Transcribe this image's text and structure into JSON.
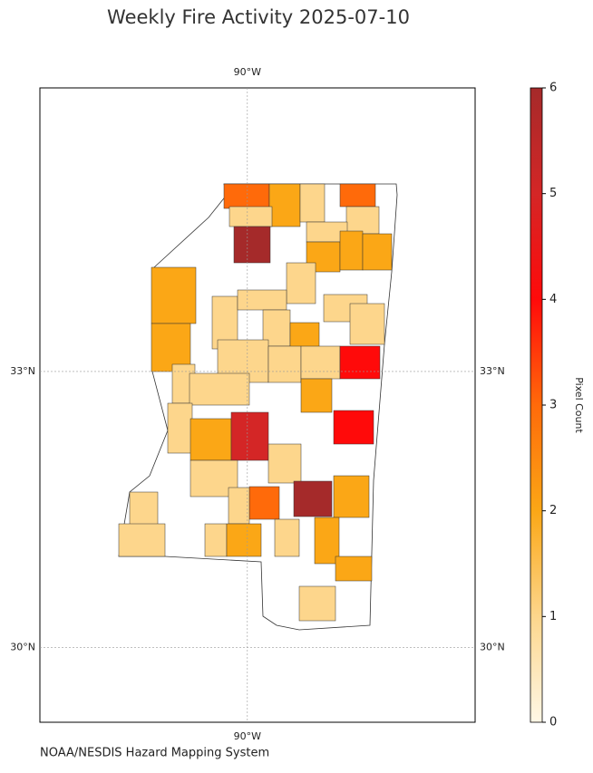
{
  "chart_data": {
    "type": "choropleth",
    "title": "Weekly Fire Activity 2025-07-10",
    "source": "NOAA/NESDIS Hazard Mapping System",
    "xlim": [
      -92.25,
      -87.53
    ],
    "ylim": [
      29.19,
      36.08
    ],
    "xticks": [
      {
        "value": -90,
        "label": "90°W"
      }
    ],
    "yticks": [
      {
        "value": 30,
        "label": "30°N"
      },
      {
        "value": 33,
        "label": "33°N"
      }
    ],
    "grid": true,
    "values": [
      3,
      2,
      1,
      3,
      1,
      1,
      6,
      1,
      2,
      2,
      2,
      2,
      1,
      1,
      1,
      1,
      1,
      1,
      2,
      2,
      1,
      1,
      1,
      4,
      1,
      1,
      2,
      1,
      2,
      5,
      4,
      1,
      1,
      2,
      6,
      3,
      1,
      1,
      1,
      1,
      2,
      1,
      2,
      2,
      1
    ],
    "colorbar": {
      "label": "Pixel Count",
      "lim": [
        0,
        6
      ],
      "ticks": [
        0,
        1,
        2,
        3,
        4,
        5,
        6
      ],
      "colors": [
        "#fff7e6",
        "#fdd68c",
        "#fba716",
        "#ff6a0a",
        "#ff0a0a",
        "#d42626",
        "#a52a2a"
      ]
    }
  }
}
